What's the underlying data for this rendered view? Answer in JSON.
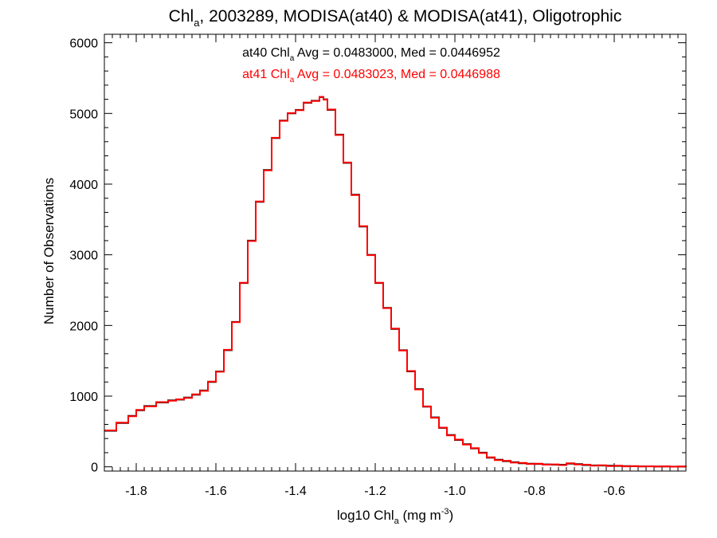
{
  "chart_data": {
    "type": "line",
    "step": true,
    "title": {
      "pre": "Chl",
      "sub": "a",
      "post": ", 2003289, MODISA(at40) & MODISA(at41), Oligotrophic"
    },
    "xlabel": {
      "pre": "log10 Chl",
      "sub": "a",
      "mid": " (mg m",
      "sup": "-3",
      "post": ")"
    },
    "ylabel": "Number of Observations",
    "xlim": [
      -1.88,
      -0.42
    ],
    "ylim": [
      -60,
      6120
    ],
    "xticks": [
      -1.8,
      -1.6,
      -1.4,
      -1.2,
      -1.0,
      -0.8,
      -0.6
    ],
    "xtick_labels": [
      "-1.8",
      "-1.6",
      "-1.4",
      "-1.2",
      "-1.0",
      "-0.8",
      "-0.6"
    ],
    "yticks": [
      0,
      1000,
      2000,
      3000,
      4000,
      5000,
      6000
    ],
    "ytick_labels": [
      "0",
      "1000",
      "2000",
      "3000",
      "4000",
      "5000",
      "6000"
    ],
    "grid": false,
    "annotations": [
      {
        "pre": "at40 Chl",
        "sub": "a",
        "post": " Avg = 0.0483000, Med = 0.0446952",
        "color": "#000000"
      },
      {
        "pre": "at41 Chl",
        "sub": "a",
        "post": " Avg = 0.0483023, Med = 0.0446988",
        "color": "#ff0000"
      }
    ],
    "series": [
      {
        "color": "#000000",
        "x": [
          -1.88,
          -1.85,
          -1.82,
          -1.8,
          -1.78,
          -1.75,
          -1.72,
          -1.7,
          -1.68,
          -1.66,
          -1.64,
          -1.62,
          -1.6,
          -1.58,
          -1.56,
          -1.54,
          -1.52,
          -1.5,
          -1.48,
          -1.46,
          -1.44,
          -1.42,
          -1.4,
          -1.38,
          -1.36,
          -1.34,
          -1.33,
          -1.32,
          -1.3,
          -1.28,
          -1.26,
          -1.24,
          -1.22,
          -1.2,
          -1.18,
          -1.16,
          -1.14,
          -1.12,
          -1.1,
          -1.08,
          -1.06,
          -1.04,
          -1.02,
          -1.0,
          -0.98,
          -0.96,
          -0.94,
          -0.92,
          -0.9,
          -0.88,
          -0.86,
          -0.84,
          -0.82,
          -0.8,
          -0.78,
          -0.76,
          -0.74,
          -0.72,
          -0.7,
          -0.68,
          -0.66,
          -0.64,
          -0.62,
          -0.6,
          -0.58,
          -0.56,
          -0.54,
          -0.52,
          -0.5,
          -0.48,
          -0.46,
          -0.44,
          -0.42
        ],
        "y": [
          510,
          620,
          720,
          800,
          860,
          910,
          940,
          950,
          980,
          1020,
          1080,
          1200,
          1350,
          1650,
          2050,
          2600,
          3200,
          3750,
          4200,
          4650,
          4900,
          5000,
          5050,
          5150,
          5180,
          5230,
          5200,
          5050,
          4700,
          4300,
          3850,
          3400,
          3000,
          2600,
          2250,
          1950,
          1650,
          1350,
          1100,
          850,
          700,
          550,
          450,
          380,
          320,
          260,
          200,
          130,
          100,
          80,
          65,
          50,
          45,
          40,
          35,
          30,
          30,
          45,
          38,
          25,
          20,
          18,
          15,
          12,
          10,
          8,
          7,
          6,
          5,
          4,
          3,
          3,
          2
        ]
      },
      {
        "color": "#ff0000",
        "x": [
          -1.88,
          -1.85,
          -1.82,
          -1.8,
          -1.78,
          -1.75,
          -1.72,
          -1.7,
          -1.68,
          -1.66,
          -1.64,
          -1.62,
          -1.6,
          -1.58,
          -1.56,
          -1.54,
          -1.52,
          -1.5,
          -1.48,
          -1.46,
          -1.44,
          -1.42,
          -1.4,
          -1.38,
          -1.36,
          -1.34,
          -1.33,
          -1.32,
          -1.3,
          -1.28,
          -1.26,
          -1.24,
          -1.22,
          -1.2,
          -1.18,
          -1.16,
          -1.14,
          -1.12,
          -1.1,
          -1.08,
          -1.06,
          -1.04,
          -1.02,
          -1.0,
          -0.98,
          -0.96,
          -0.94,
          -0.92,
          -0.9,
          -0.88,
          -0.86,
          -0.84,
          -0.82,
          -0.8,
          -0.78,
          -0.76,
          -0.74,
          -0.72,
          -0.7,
          -0.68,
          -0.66,
          -0.64,
          -0.62,
          -0.6,
          -0.58,
          -0.56,
          -0.54,
          -0.52,
          -0.5,
          -0.48,
          -0.46,
          -0.44,
          -0.42
        ],
        "y": [
          515,
          625,
          715,
          805,
          855,
          915,
          935,
          955,
          975,
          1025,
          1075,
          1205,
          1345,
          1655,
          2045,
          2605,
          3195,
          3755,
          4195,
          4655,
          4895,
          5005,
          5045,
          5155,
          5175,
          5235,
          5195,
          5055,
          4695,
          4305,
          3845,
          3405,
          2995,
          2605,
          2245,
          1955,
          1645,
          1355,
          1095,
          855,
          695,
          555,
          445,
          385,
          315,
          265,
          195,
          135,
          95,
          85,
          60,
          55,
          40,
          45,
          30,
          35,
          25,
          50,
          33,
          30,
          15,
          22,
          10,
          16,
          7,
          10,
          5,
          8,
          3,
          6,
          2,
          4,
          1
        ]
      }
    ]
  }
}
